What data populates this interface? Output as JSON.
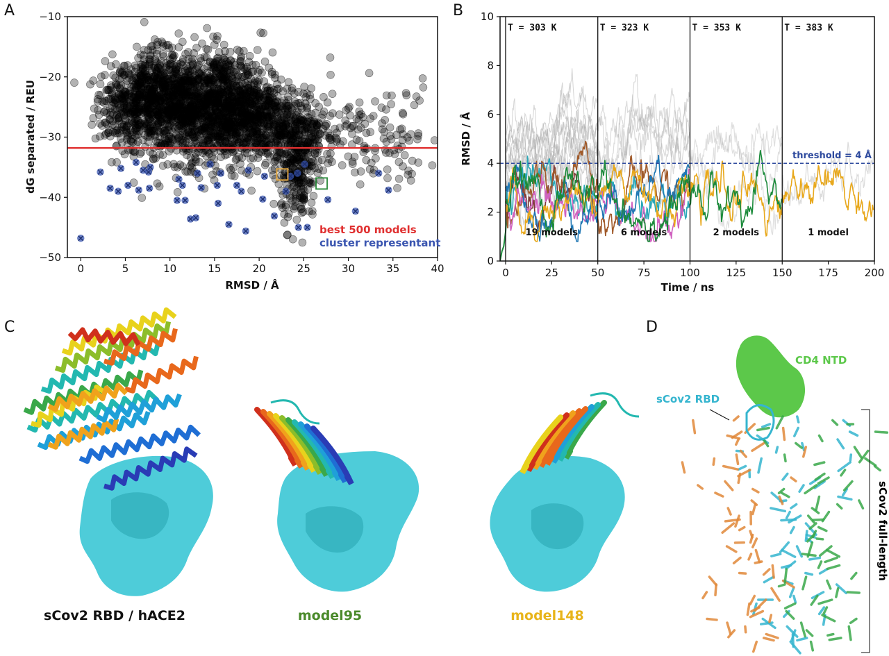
{
  "panels": {
    "a": {
      "letter": "A"
    },
    "b": {
      "letter": "B"
    },
    "c": {
      "letter": "C",
      "labels": [
        {
          "text": "sCov2 RBD / hACE2",
          "color": "#111111"
        },
        {
          "text": "model95",
          "color": "#4a8a2a"
        },
        {
          "text": "model148",
          "color": "#e8b41a"
        }
      ]
    },
    "d": {
      "letter": "D",
      "label_ntd": "CD4 NTD",
      "label_rbd": "sCov2 RBD",
      "label_full": "sCov2 full-length",
      "colors": {
        "ntd": "#5cc84a",
        "rbd": "#35b5cf"
      }
    }
  },
  "chart_data": [
    {
      "panel": "A",
      "type": "scatter",
      "xlabel": "RMSD / Å",
      "ylabel": "dG separated / REU",
      "xlim": [
        -1.5,
        40
      ],
      "ylim": [
        -50,
        -10
      ],
      "xticks": [
        0,
        5,
        10,
        15,
        20,
        25,
        30,
        35,
        40
      ],
      "yticks": [
        -10,
        -20,
        -30,
        -40,
        -50
      ],
      "xtick_labels": [
        "0",
        "5",
        "10",
        "15",
        "20",
        "25",
        "30",
        "35",
        "40"
      ],
      "ytick_labels": [
        "−10",
        "−20",
        "−30",
        "−40",
        "−50"
      ],
      "hline": {
        "y": -31.8,
        "color": "#e03030"
      },
      "legend": [
        {
          "text": "best 500 models",
          "color": "#e03030"
        },
        {
          "text": "cluster representant",
          "color": "#3a55b0"
        }
      ],
      "clusters": [
        {
          "cx": 4.5,
          "cy": -25,
          "sx": 1.5,
          "sy": 3.5,
          "n": 180
        },
        {
          "cx": 8,
          "cy": -24,
          "sx": 2.0,
          "sy": 4.0,
          "n": 500
        },
        {
          "cx": 12,
          "cy": -25,
          "sx": 2.5,
          "sy": 4.5,
          "n": 700
        },
        {
          "cx": 16.5,
          "cy": -25,
          "sx": 2.5,
          "sy": 4.5,
          "n": 750
        },
        {
          "cx": 19.5,
          "cy": -27,
          "sx": 1.8,
          "sy": 4.0,
          "n": 260
        },
        {
          "cx": 24,
          "cy": -29.5,
          "sx": 1.6,
          "sy": 3.5,
          "n": 330
        },
        {
          "cx": 24.5,
          "cy": -38,
          "sx": 1.0,
          "sy": 3.5,
          "n": 140
        },
        {
          "cx": 29,
          "cy": -30,
          "sx": 2.5,
          "sy": 4.0,
          "n": 80
        },
        {
          "cx": 35,
          "cy": -29,
          "sx": 2.5,
          "sy": 4.5,
          "n": 70
        }
      ],
      "representants": [
        [
          0,
          -46.8
        ],
        [
          2.2,
          -35.8
        ],
        [
          3.3,
          -38.5
        ],
        [
          4.2,
          -39.0
        ],
        [
          4.5,
          -35.2
        ],
        [
          5.3,
          -38.0
        ],
        [
          6.2,
          -34.2
        ],
        [
          6.5,
          -38.8
        ],
        [
          7.0,
          -35.5
        ],
        [
          7.6,
          -35.8
        ],
        [
          7.7,
          -38.5
        ],
        [
          7.8,
          -35.0
        ],
        [
          10.8,
          -40.5
        ],
        [
          11.0,
          -37.0
        ],
        [
          11.4,
          -38.0
        ],
        [
          11.7,
          -40.5
        ],
        [
          12.3,
          -43.6
        ],
        [
          12.9,
          -43.4
        ],
        [
          13.1,
          -36.0
        ],
        [
          13.5,
          -38.4
        ],
        [
          14.5,
          -34.5
        ],
        [
          15.3,
          -38.0
        ],
        [
          15.4,
          -41.0
        ],
        [
          15.7,
          -36.0
        ],
        [
          16.6,
          -44.5
        ],
        [
          17.5,
          -38.0
        ],
        [
          18.0,
          -39.0
        ],
        [
          18.5,
          -45.6
        ],
        [
          18.8,
          -35.5
        ],
        [
          20.4,
          -40.3
        ],
        [
          20.6,
          -36.5
        ],
        [
          21.7,
          -43.1
        ],
        [
          23.0,
          -39.0
        ],
        [
          23.5,
          -36.5
        ],
        [
          24.3,
          -36.0
        ],
        [
          24.4,
          -45.0
        ],
        [
          25.1,
          -34.5
        ],
        [
          25.4,
          -45.0
        ],
        [
          27.7,
          -40.4
        ],
        [
          30.8,
          -42.3
        ],
        [
          33.4,
          -36.0
        ],
        [
          34.5,
          -38.8
        ]
      ],
      "highlight_boxes": [
        {
          "x": 22.6,
          "y": -36.2,
          "color": "#e8a83a"
        },
        {
          "x": 27.0,
          "y": -37.7,
          "color": "#2a8a3a"
        }
      ]
    },
    {
      "panel": "B",
      "type": "line",
      "xlabel": "Time / ns",
      "ylabel": "RMSD / Å",
      "xlim": [
        -3,
        200
      ],
      "ylim": [
        0,
        10
      ],
      "xticks": [
        0,
        25,
        50,
        75,
        100,
        125,
        150,
        175,
        200
      ],
      "yticks": [
        0,
        2,
        4,
        6,
        8,
        10
      ],
      "threshold": {
        "y": 4,
        "label": "threshold = 4 Å",
        "color": "#2e4a9e"
      },
      "segments": [
        {
          "start": 0,
          "end": 50,
          "temp": "T = 303 K",
          "models": "19 models"
        },
        {
          "start": 50,
          "end": 100,
          "temp": "T = 323 K",
          "models": "6 models"
        },
        {
          "start": 100,
          "end": 150,
          "temp": "T = 353 K",
          "models": "2 models"
        },
        {
          "start": 150,
          "end": 200,
          "temp": "T = 383 K",
          "models": "1 model"
        }
      ],
      "series_colors": [
        "#1b8a3a",
        "#e8a81c",
        "#1f77b4",
        "#d062c0",
        "#a05a2a",
        "#2aa7b7",
        "#7f3a3a"
      ],
      "gray_color": "#b0b0b0"
    }
  ]
}
